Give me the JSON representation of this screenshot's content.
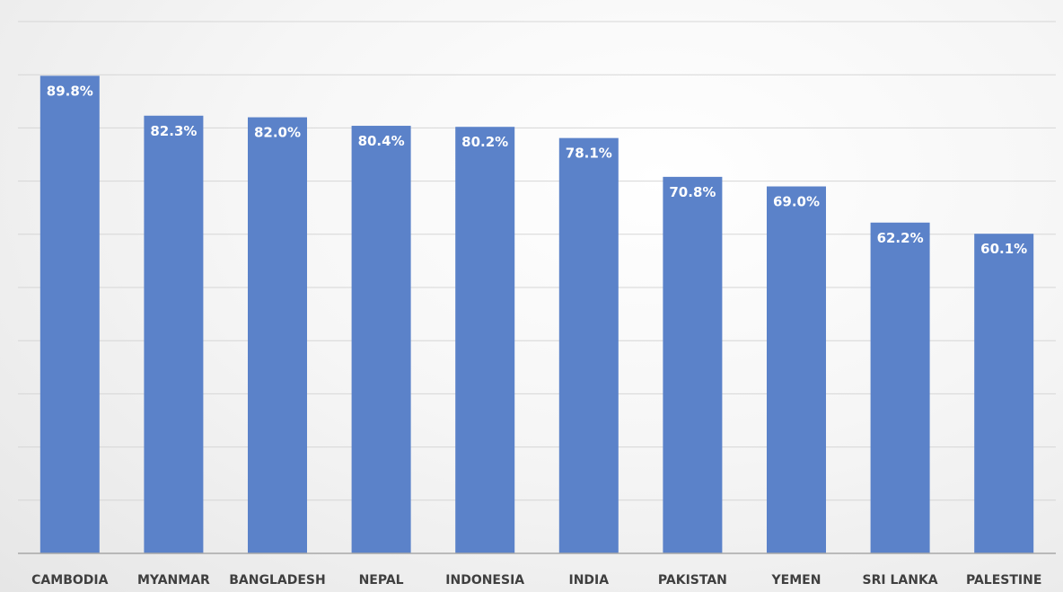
{
  "chart_data": {
    "type": "bar",
    "categories": [
      "CAMBODIA",
      "MYANMAR",
      "BANGLADESH",
      "NEPAL",
      "INDONESIA",
      "INDIA",
      "PAKISTAN",
      "YEMEN",
      "SRI LANKA",
      "PALESTINE"
    ],
    "values": [
      89.8,
      82.3,
      82.0,
      80.4,
      80.2,
      78.1,
      70.8,
      69.0,
      62.2,
      60.1
    ],
    "data_labels": [
      "89.8%",
      "82.3%",
      "82.0%",
      "80.4%",
      "80.2%",
      "78.1%",
      "70.8%",
      "69.0%",
      "62.2%",
      "60.1%"
    ],
    "ylim": [
      0,
      100
    ],
    "grid": true,
    "legend": "none",
    "colors": {
      "bar": "#5b82c9",
      "data_label": "#ffffff",
      "category_label": "#3f3f3f",
      "grid": "#d6d6d6"
    }
  }
}
